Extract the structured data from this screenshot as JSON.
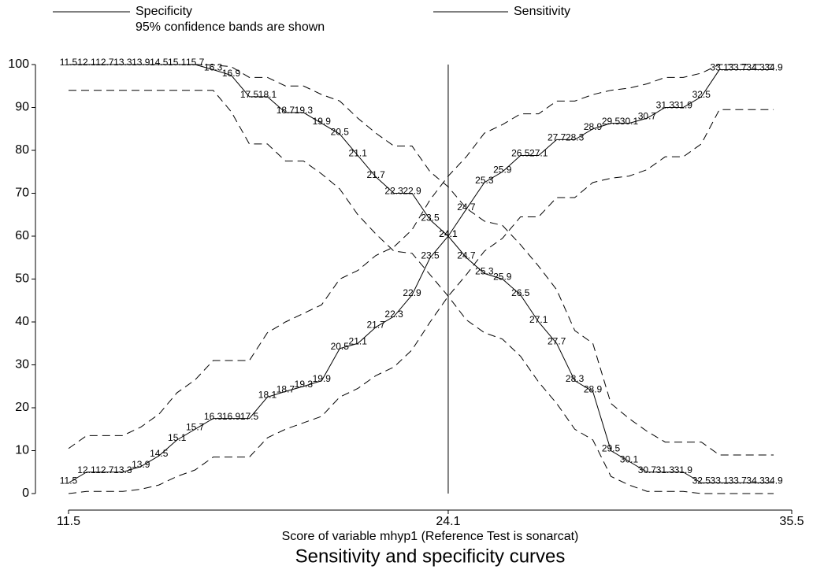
{
  "chart_data": {
    "type": "line",
    "title": "Sensitivity and specificity curves",
    "xlabel": "Score of variable mhyp1 (Reference Test is sonarcat)",
    "note": "95% confidence bands are shown",
    "x": [
      11.5,
      12.1,
      12.7,
      13.3,
      13.9,
      14.5,
      15.1,
      15.7,
      16.3,
      16.9,
      17.5,
      18.1,
      18.7,
      19.3,
      19.9,
      20.5,
      21.1,
      21.7,
      22.3,
      22.9,
      23.5,
      24.1,
      24.7,
      25.3,
      25.9,
      26.5,
      27.1,
      27.7,
      28.3,
      28.9,
      29.5,
      30.1,
      30.7,
      31.3,
      31.9,
      32.5,
      33.1,
      33.7,
      34.3,
      34.9
    ],
    "series": [
      {
        "name": "Specificity",
        "color": "#000000",
        "values": [
          100,
          100,
          100,
          100,
          100,
          100,
          100,
          100,
          98.8,
          97.5,
          92.5,
          92.5,
          88.8,
          88.8,
          86.3,
          83.8,
          78.8,
          73.8,
          70,
          70,
          63.8,
          60,
          55,
          51.3,
          50,
          46.3,
          40,
          35,
          26.3,
          23.8,
          10,
          7.5,
          5,
          5,
          5,
          2.5,
          2.5,
          2.5,
          2.5,
          2.5
        ],
        "lower": [
          94,
          94,
          94,
          94,
          94,
          94,
          94,
          94,
          94,
          89,
          81.5,
          81.5,
          77.5,
          77.5,
          74.5,
          71,
          65,
          60.5,
          56.5,
          56,
          51,
          46,
          40.5,
          37.5,
          36,
          32,
          26,
          21,
          15,
          12.5,
          4,
          2,
          0.5,
          0.5,
          0.5,
          0,
          0,
          0,
          0,
          0
        ],
        "upper": [
          100,
          100,
          100,
          100,
          100,
          100,
          100,
          100,
          99.9,
          99.5,
          97,
          97,
          95,
          95,
          93,
          91.5,
          87.5,
          84,
          81,
          81,
          75,
          71.5,
          66.5,
          63.5,
          62.5,
          58,
          53,
          47.5,
          38,
          35,
          21,
          17.5,
          14.5,
          12,
          12,
          12,
          9,
          9,
          9,
          9
        ]
      },
      {
        "name": "Sensitivity",
        "color": "#000000",
        "values": [
          2.5,
          5,
          5,
          5,
          6.3,
          8.8,
          12.5,
          15,
          17.5,
          17.5,
          17.5,
          22.5,
          23.8,
          25,
          26.3,
          33.8,
          35,
          38.8,
          41.3,
          46.3,
          55,
          60,
          66.3,
          72.5,
          75,
          78.8,
          78.8,
          82.5,
          82.5,
          85,
          86.3,
          86.3,
          87.5,
          90,
          90,
          92.5,
          98.8,
          98.8,
          98.8,
          98.8
        ],
        "lower": [
          0,
          0.5,
          0.5,
          0.5,
          1,
          2,
          4,
          5.5,
          8.5,
          8.5,
          8.5,
          13,
          15,
          16.5,
          18,
          22.5,
          24.5,
          27.5,
          29.5,
          33.5,
          40,
          46,
          51,
          56.5,
          59.5,
          64.5,
          64.5,
          69,
          69,
          72.5,
          73.5,
          74,
          75.5,
          78.5,
          78.5,
          81.5,
          89.5,
          89.5,
          89.5,
          89.5
        ],
        "upper": [
          10.5,
          13.5,
          13.5,
          13.5,
          15.5,
          18.5,
          23.5,
          26.5,
          31,
          31,
          31,
          37.5,
          40,
          42,
          44,
          50,
          52,
          55.5,
          57.5,
          61.5,
          68.5,
          74,
          78.5,
          84,
          86,
          88.5,
          88.5,
          91.5,
          91.5,
          93,
          94,
          94.5,
          95.5,
          97,
          97,
          98,
          100,
          100,
          100,
          100
        ]
      }
    ],
    "cutoff": 24.1,
    "xlim": [
      11.5,
      35.5
    ],
    "xticks": [
      11.5,
      24.1,
      35.5
    ],
    "ylim": [
      0,
      100
    ],
    "yticks": [
      0,
      10,
      20,
      30,
      40,
      50,
      60,
      70,
      80,
      90,
      100
    ]
  }
}
